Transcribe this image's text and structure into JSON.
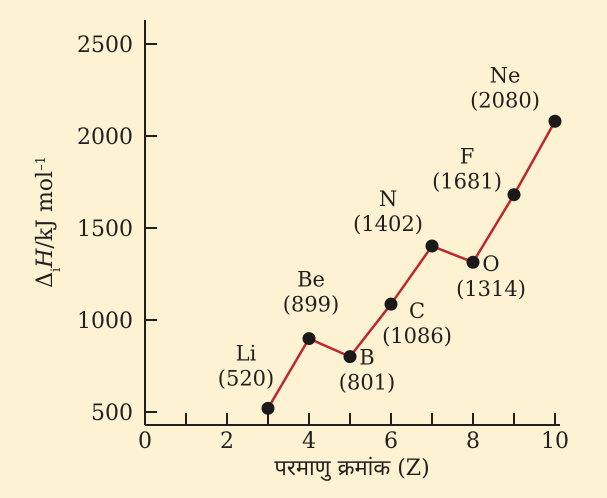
{
  "chart_data": {
    "type": "line",
    "xlabel": "परमाणु क्रमांक (Z)",
    "ylabel": "ΔiH/kJ mol⁻¹",
    "ylabel_parts": {
      "delta": "Δ",
      "sub": "i",
      "h": "H",
      "unit": "/kJ mol",
      "sup": "–1"
    },
    "xlim": [
      0,
      10
    ],
    "ylim": [
      500,
      2500
    ],
    "xticks": [
      0,
      2,
      4,
      6,
      8,
      10
    ],
    "yticks": [
      500,
      1000,
      1500,
      2000,
      2500
    ],
    "grid": false,
    "series": [
      {
        "color": "#c0272d",
        "points": [
          {
            "x": 3,
            "y": 520,
            "element": "Li",
            "value_label": "(520)"
          },
          {
            "x": 4,
            "y": 899,
            "element": "Be",
            "value_label": "(899)"
          },
          {
            "x": 5,
            "y": 801,
            "element": "B",
            "value_label": "(801)"
          },
          {
            "x": 6,
            "y": 1086,
            "element": "C",
            "value_label": "(1086)"
          },
          {
            "x": 7,
            "y": 1402,
            "element": "N",
            "value_label": "(1402)"
          },
          {
            "x": 8,
            "y": 1314,
            "element": "O",
            "value_label": "(1314)"
          },
          {
            "x": 9,
            "y": 1681,
            "element": "F",
            "value_label": "(1681)"
          },
          {
            "x": 10,
            "y": 2080,
            "element": "Ne",
            "value_label": "(2080)"
          }
        ]
      }
    ]
  }
}
